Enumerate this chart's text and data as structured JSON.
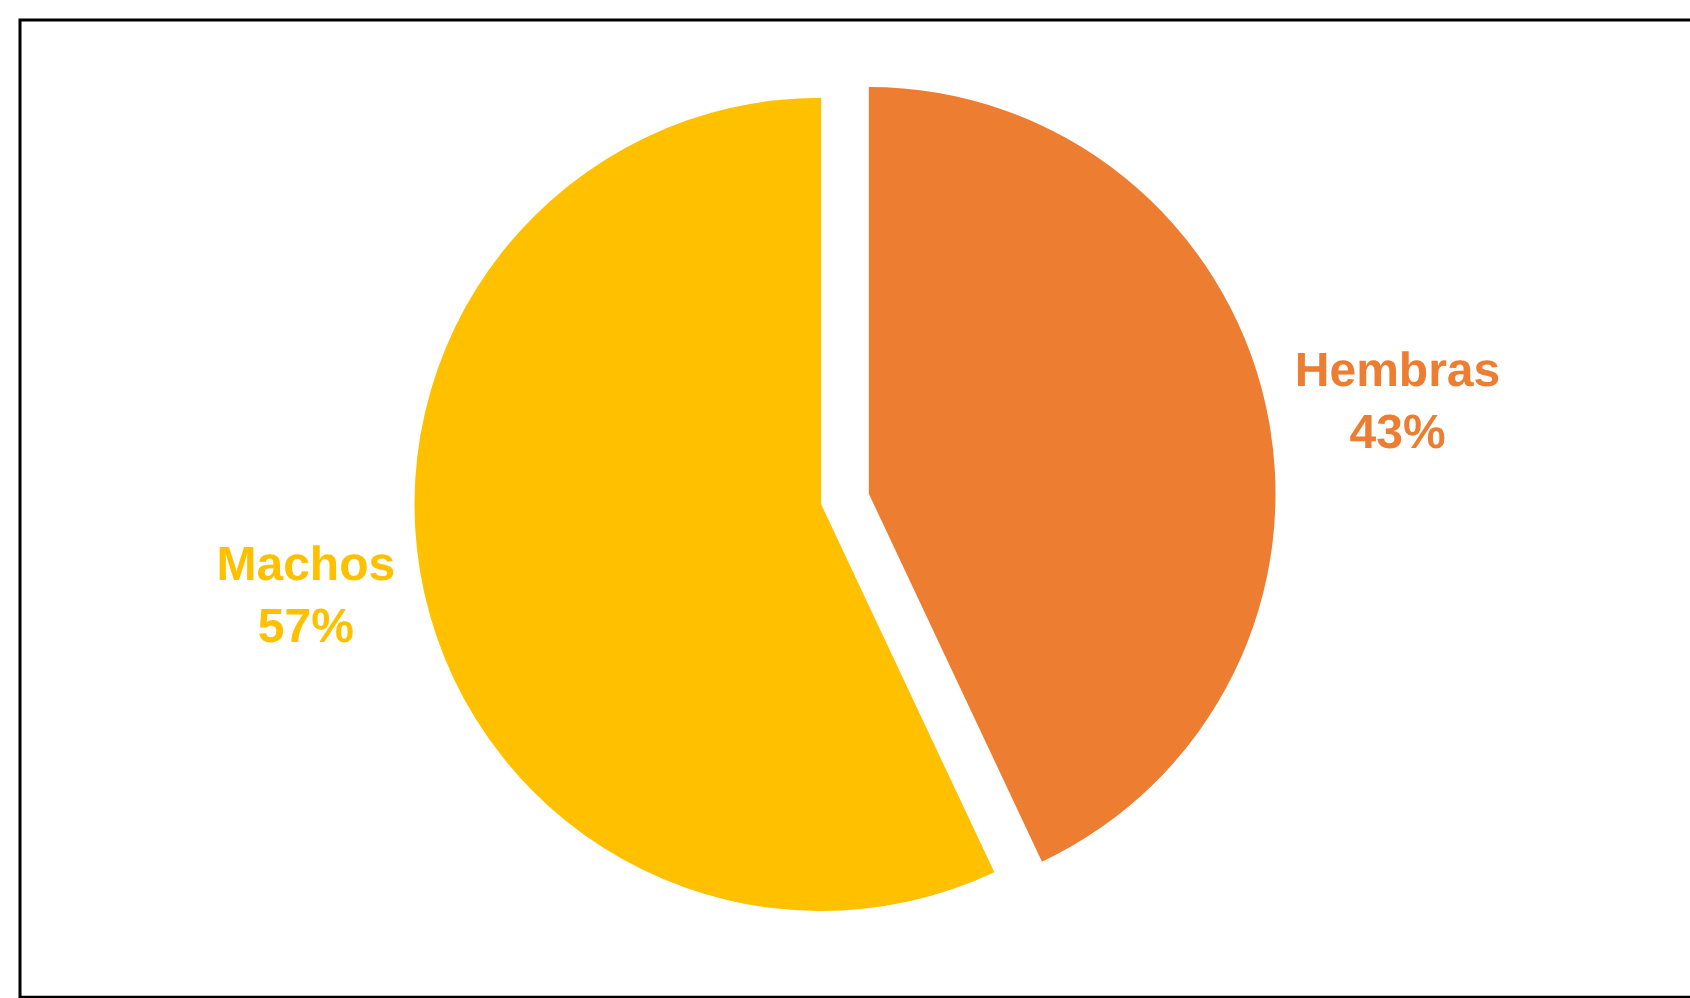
{
  "chart_data": {
    "type": "pie",
    "categories": [
      "Hembras",
      "Machos"
    ],
    "values": [
      43,
      57
    ],
    "colors": [
      "#ed7d31",
      "#ffc000"
    ],
    "value_labels": [
      "43%",
      "57%"
    ],
    "legend": false
  }
}
